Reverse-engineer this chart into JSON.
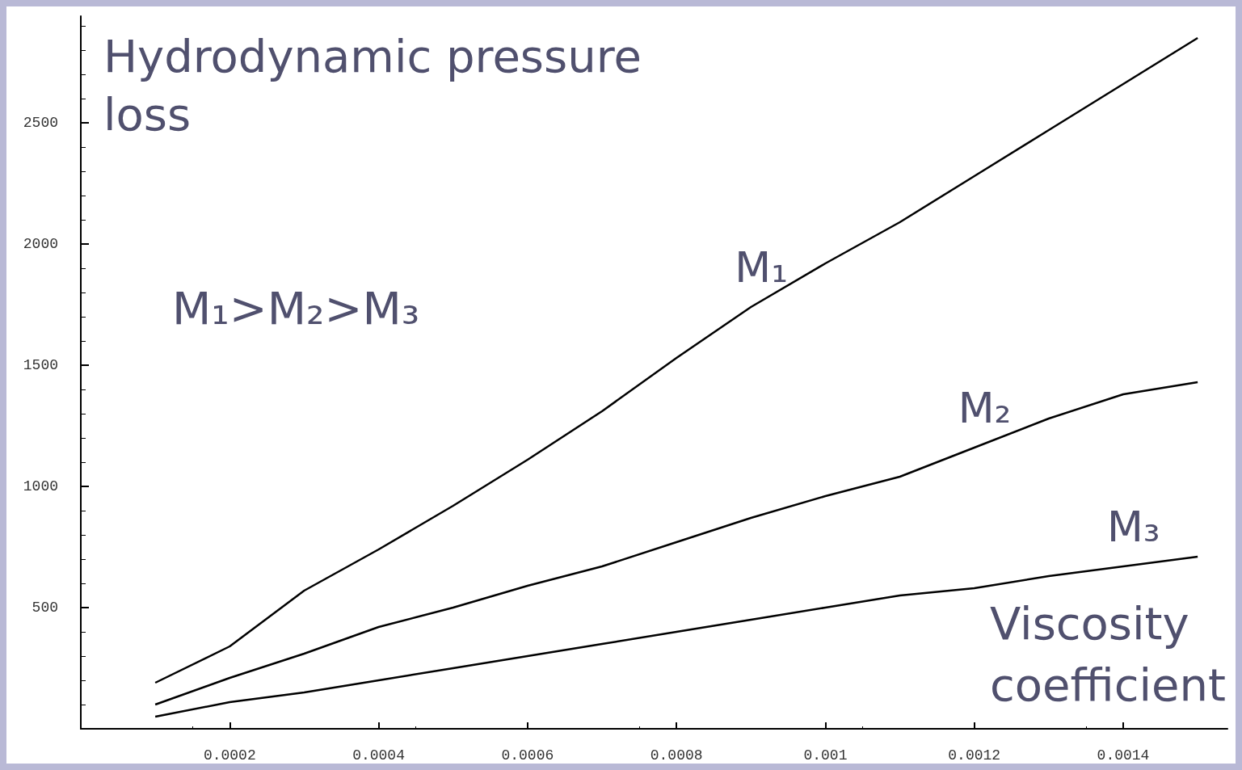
{
  "chart_data": {
    "type": "line",
    "xlabel": "Viscosity coefficient",
    "ylabel": "Hydrodynamic pressure loss",
    "x": [
      0.0001,
      0.0002,
      0.0003,
      0.0004,
      0.0005,
      0.0006,
      0.0007,
      0.0008,
      0.0009,
      0.001,
      0.0011,
      0.0012,
      0.0013,
      0.0014,
      0.0015
    ],
    "series": [
      {
        "name": "M₁",
        "color": "#000000",
        "values": [
          190,
          340,
          570,
          740,
          920,
          1110,
          1310,
          1530,
          1740,
          1920,
          2090,
          2280,
          2470,
          2660,
          2850
        ]
      },
      {
        "name": "M₂",
        "color": "#000000",
        "values": [
          100,
          210,
          310,
          420,
          500,
          590,
          670,
          770,
          870,
          960,
          1040,
          1160,
          1280,
          1380,
          1430
        ]
      },
      {
        "name": "M₃",
        "color": "#000000",
        "values": [
          50,
          110,
          150,
          200,
          250,
          300,
          350,
          400,
          450,
          500,
          550,
          580,
          630,
          670,
          710
        ]
      }
    ],
    "annotations": [
      "M₁>M₂>M₃"
    ],
    "xlim": [
      0,
      0.00154
    ],
    "ylim": [
      0,
      2940
    ],
    "xticks": [
      0.0002,
      0.0004,
      0.0006,
      0.0008,
      0.001,
      0.0012,
      0.0014
    ],
    "yticks": [
      500,
      1000,
      1500,
      2000,
      2500
    ],
    "grid": false,
    "legend": false,
    "marker": "none",
    "line_style": "solid"
  }
}
